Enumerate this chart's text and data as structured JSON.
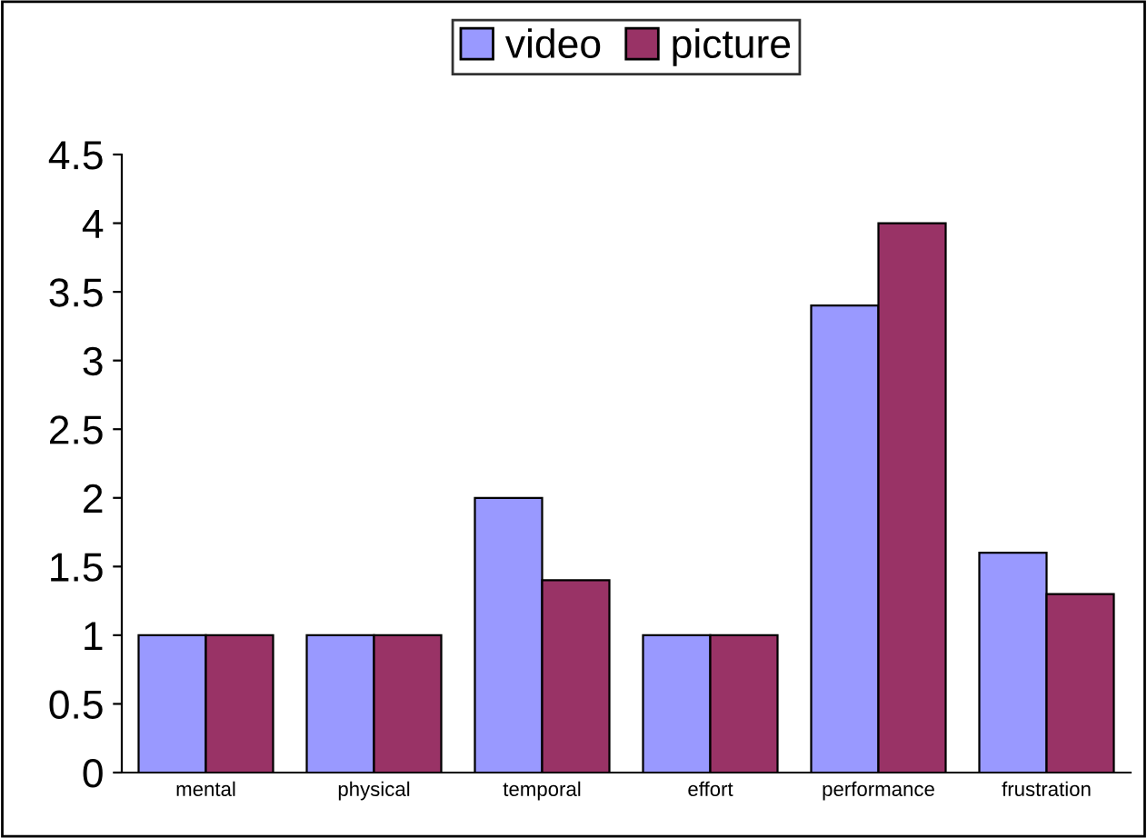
{
  "chart_data": {
    "type": "bar",
    "categories": [
      "mental",
      "physical",
      "temporal",
      "effort",
      "performance",
      "frustration"
    ],
    "series": [
      {
        "name": "video",
        "color": "#9999ff",
        "values": [
          1,
          1,
          2,
          1,
          3.4,
          1.6
        ]
      },
      {
        "name": "picture",
        "color": "#993366",
        "values": [
          1,
          1,
          1.4,
          1,
          4,
          1.3
        ]
      }
    ],
    "ylim": [
      0,
      4.5
    ],
    "yticks": [
      0,
      0.5,
      1,
      1.5,
      2,
      2.5,
      3,
      3.5,
      4,
      4.5
    ],
    "grid": false,
    "legend": "top"
  }
}
